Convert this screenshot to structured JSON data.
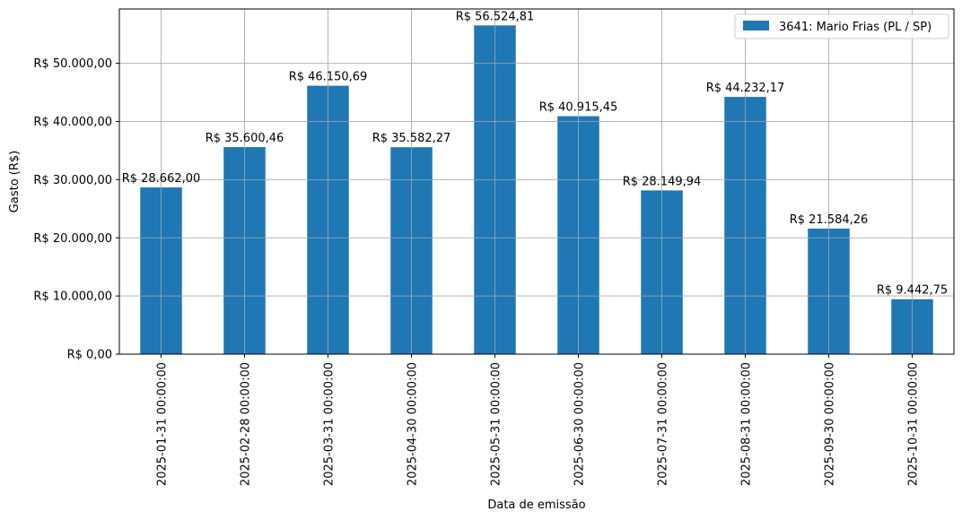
{
  "chart_data": {
    "type": "bar",
    "categories": [
      "2025-01-31 00:00:00",
      "2025-02-28 00:00:00",
      "2025-03-31 00:00:00",
      "2025-04-30 00:00:00",
      "2025-05-31 00:00:00",
      "2025-06-30 00:00:00",
      "2025-07-31 00:00:00",
      "2025-08-31 00:00:00",
      "2025-09-30 00:00:00",
      "2025-10-31 00:00:00"
    ],
    "series": [
      {
        "name": "3641: Mario Frias (PL / SP)",
        "color": "#1f77b4",
        "values": [
          28662.0,
          35600.46,
          46150.69,
          35582.27,
          56524.81,
          40915.45,
          28149.94,
          44232.17,
          21584.26,
          9442.75
        ]
      }
    ],
    "data_labels": [
      "R$ 28.662,00",
      "R$ 35.600,46",
      "R$ 46.150,69",
      "R$ 35.582,27",
      "R$ 56.524,81",
      "R$ 40.915,45",
      "R$ 28.149,94",
      "R$ 44.232,17",
      "R$ 21.584,26",
      "R$ 9.442,75"
    ],
    "title": "",
    "xlabel": "Data de emissão",
    "ylabel": "Gasto (R$)",
    "ylim": [
      0,
      59350
    ],
    "yticks": [
      0,
      10000,
      20000,
      30000,
      40000,
      50000
    ],
    "ytick_labels": [
      "R$ 0,00",
      "R$ 10.000,00",
      "R$ 20.000,00",
      "R$ 30.000,00",
      "R$ 40.000,00",
      "R$ 50.000,00"
    ],
    "grid": true,
    "legend_position": "top-right"
  }
}
